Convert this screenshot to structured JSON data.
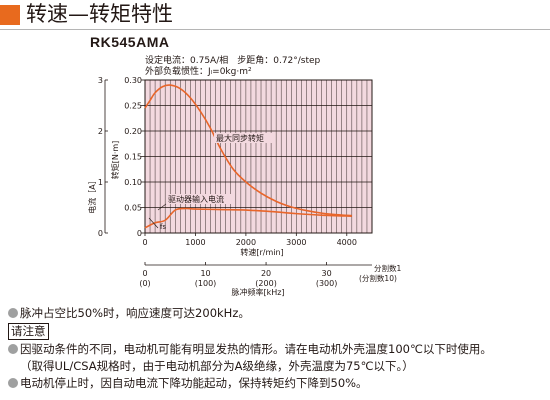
{
  "header": {
    "title": "转速—转矩特性"
  },
  "model": "RK545AMA",
  "conditions": {
    "current_line": "设定电流：0.75A/相　步距角：0.72°/step",
    "inertia_line": "外部负载惯性：Jₗ=0kg·m²"
  },
  "chart_data": {
    "type": "line",
    "x_axis": {
      "label": "转速[r/min]",
      "range": [
        0,
        4500
      ],
      "ticks": [
        "0",
        "1000",
        "2000",
        "3000",
        "4000"
      ],
      "tick_values": [
        0,
        1000,
        2000,
        3000,
        4000
      ]
    },
    "pulse_axis": {
      "label": "脉冲频率[kHz]",
      "ticks_div1": [
        "0",
        "10",
        "20",
        "30"
      ],
      "ticks_div10": [
        "(0)",
        "(100)",
        "(200)",
        "(300)"
      ],
      "tick_values": [
        0,
        10,
        20,
        30
      ],
      "end_label_1": "分割数1",
      "end_label_2": "(分割数10)"
    },
    "y_axis_torque": {
      "label": "转矩[N·m]",
      "range": [
        0,
        0.3
      ],
      "ticks": [
        "0",
        "0.05",
        "0.10",
        "0.15",
        "0.20",
        "0.25",
        "0.30"
      ],
      "tick_values": [
        0,
        0.05,
        0.1,
        0.15,
        0.2,
        0.25,
        0.3
      ]
    },
    "y_axis_current": {
      "label": "电流［A］",
      "range": [
        0,
        3
      ],
      "ticks": [
        "0",
        "1",
        "2",
        "3"
      ],
      "tick_values": [
        0,
        1,
        2,
        3
      ]
    },
    "series": [
      {
        "name": "最大同步转矩",
        "color": "#e8652a",
        "x": [
          0,
          100,
          200,
          350,
          500,
          700,
          900,
          1100,
          1300,
          1500,
          1750,
          2000,
          2300,
          2600,
          2900,
          3200,
          3500,
          3800,
          4100
        ],
        "y": [
          0.245,
          0.26,
          0.275,
          0.287,
          0.29,
          0.283,
          0.265,
          0.238,
          0.205,
          0.165,
          0.125,
          0.1,
          0.078,
          0.062,
          0.051,
          0.044,
          0.039,
          0.036,
          0.034
        ]
      },
      {
        "name": "驱动器输入电流",
        "color": "#e8652a",
        "x": [
          0,
          200,
          400,
          600,
          800,
          1000,
          1500,
          2000,
          2500,
          3000,
          3500,
          4100
        ],
        "y": [
          0.1,
          0.2,
          0.25,
          0.45,
          0.48,
          0.47,
          0.46,
          0.45,
          0.42,
          0.38,
          0.35,
          0.33
        ]
      }
    ],
    "annotations": {
      "fs": "fs"
    }
  },
  "notes": {
    "note1": "脉冲占空比50%时，响应速度可达200kHz。",
    "caution_label": "请注意",
    "note2": "因驱动条件的不同，电动机可能有明显发热的情形。请在电动机外壳温度100℃以下时使用。",
    "note3": "（取得UL/CSA规格时，由于电动机部分为A级绝缘，外壳温度为75℃以下。）",
    "note4": "电动机停止时，因自动电流下降功能起动，保持转矩约下降到50%。"
  }
}
